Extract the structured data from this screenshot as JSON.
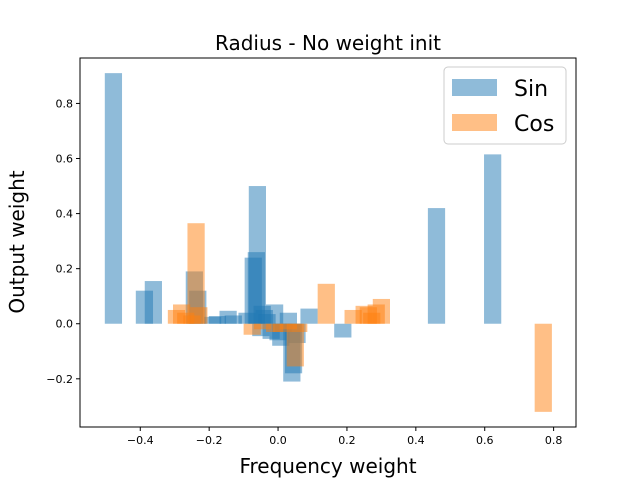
{
  "chart_data": {
    "type": "bar",
    "title": "Radius - No weight init",
    "xlabel": "Frequency weight",
    "ylabel": "Output weight",
    "xlim": [
      -0.575,
      0.865
    ],
    "ylim": [
      -0.375,
      0.965
    ],
    "xticks": [
      -0.4,
      -0.2,
      0.0,
      0.2,
      0.4,
      0.6,
      0.8
    ],
    "xtick_labels": [
      "−0.4",
      "−0.2",
      "0.0",
      "0.2",
      "0.4",
      "0.6",
      "0.8"
    ],
    "yticks": [
      -0.2,
      0.0,
      0.2,
      0.4,
      0.6,
      0.8
    ],
    "ytick_labels": [
      "−0.2",
      "0.0",
      "0.2",
      "0.4",
      "0.6",
      "0.8"
    ],
    "grid": false,
    "legend_position": "top-right",
    "bar_width": 0.05,
    "series": [
      {
        "name": "Sin",
        "color": "#1f77b4",
        "opacity": 0.5,
        "x": [
          -0.478,
          -0.388,
          -0.362,
          -0.243,
          -0.233,
          -0.19,
          -0.176,
          -0.145,
          -0.13,
          -0.09,
          -0.072,
          -0.063,
          -0.06,
          -0.05,
          -0.046,
          -0.04,
          -0.032,
          -0.02,
          -0.01,
          0.0,
          0.008,
          0.016,
          0.03,
          0.04,
          0.045,
          0.055,
          0.09,
          0.188,
          0.46,
          0.623
        ],
        "values": [
          0.91,
          0.12,
          0.155,
          0.19,
          0.12,
          0.025,
          0.028,
          0.047,
          0.03,
          0.04,
          0.24,
          0.26,
          0.5,
          -0.045,
          0.065,
          0.05,
          0.035,
          -0.055,
          0.07,
          -0.06,
          -0.08,
          -0.03,
          0.04,
          -0.21,
          -0.18,
          -0.07,
          0.055,
          -0.05,
          0.42,
          0.615
        ]
      },
      {
        "name": "Cos",
        "color": "#ff7f0e",
        "opacity": 0.5,
        "x": [
          -0.295,
          -0.28,
          -0.268,
          -0.25,
          -0.238,
          -0.23,
          -0.075,
          -0.045,
          -0.01,
          0.01,
          0.03,
          0.05,
          0.06,
          0.14,
          0.218,
          0.25,
          0.262,
          0.272,
          0.285,
          0.3,
          0.77
        ],
        "values": [
          0.05,
          0.07,
          0.04,
          0.03,
          0.365,
          0.06,
          -0.04,
          -0.02,
          -0.03,
          -0.03,
          -0.02,
          -0.155,
          -0.03,
          0.145,
          0.05,
          0.065,
          0.06,
          0.04,
          0.07,
          0.09,
          -0.32
        ]
      }
    ]
  }
}
